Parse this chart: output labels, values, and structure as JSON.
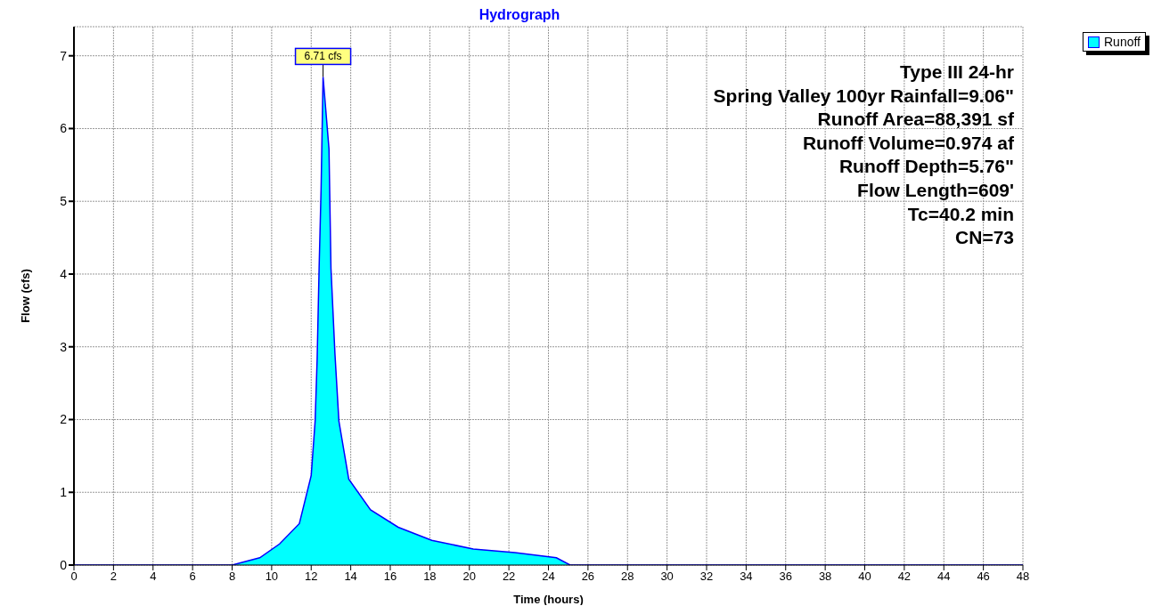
{
  "chart_data": {
    "type": "area",
    "title": "Hydrograph",
    "xlabel": "Time  (hours)",
    "ylabel": "Flow  (cfs)",
    "x": [
      0,
      8.0,
      9.4,
      10.4,
      11.4,
      12.0,
      12.2,
      12.3,
      12.4,
      12.5,
      12.6,
      12.9,
      13.0,
      13.2,
      13.4,
      13.9,
      15.0,
      16.4,
      18.1,
      20.2,
      22.3,
      24.4,
      25.1,
      48
    ],
    "series": [
      {
        "name": "Runoff",
        "color": "#00ffff",
        "values": [
          0,
          0,
          0.1,
          0.29,
          0.57,
          1.23,
          1.98,
          2.82,
          4.08,
          5.16,
          6.71,
          5.72,
          4.08,
          2.91,
          1.98,
          1.18,
          0.76,
          0.52,
          0.34,
          0.22,
          0.17,
          0.1,
          0,
          0
        ]
      }
    ],
    "xlim": [
      0,
      48
    ],
    "xticks": [
      0,
      2,
      4,
      6,
      8,
      10,
      12,
      14,
      16,
      18,
      20,
      22,
      24,
      26,
      28,
      30,
      32,
      34,
      36,
      38,
      40,
      42,
      44,
      46,
      48
    ],
    "ylim": [
      0,
      7.4
    ],
    "yticks": [
      0,
      1,
      2,
      3,
      4,
      5,
      6,
      7
    ],
    "grid": true,
    "legend": "top right",
    "annotations": [
      {
        "text": "6.71 cfs",
        "x": 12.6,
        "y": 6.71
      },
      "Type III 24-hr",
      "Spring Valley 100yr Rainfall=9.06\"",
      "Runoff Area=88,391 sf",
      "Runoff Volume=0.974 af",
      "Runoff Depth=5.76\"",
      "Flow Length=609'",
      "Tc=40.2 min",
      "CN=73"
    ]
  }
}
